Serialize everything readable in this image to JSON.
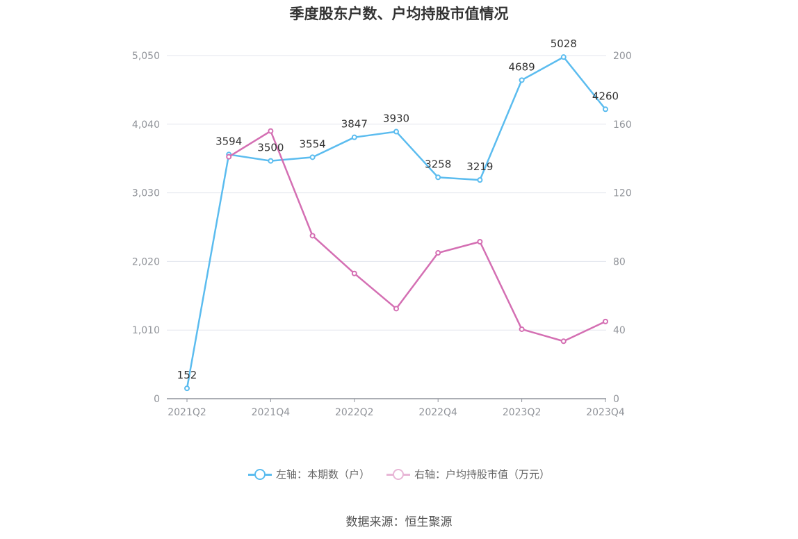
{
  "chart_data": {
    "type": "line",
    "title": "季度股东户数、户均持股市值情况",
    "categories": [
      "2021Q2",
      "2021Q3",
      "2021Q4",
      "2022Q1",
      "2022Q2",
      "2022Q3",
      "2022Q4",
      "2023Q1",
      "2023Q2",
      "2023Q3",
      "2023Q4"
    ],
    "x_tick_labels": [
      "2021Q2",
      "2021Q4",
      "2022Q2",
      "2022Q4",
      "2023Q2",
      "2023Q4"
    ],
    "left_axis": {
      "ylim": [
        0,
        5050
      ],
      "ticks": [
        "0",
        "1,010",
        "2,020",
        "3,030",
        "4,040",
        "5,050"
      ]
    },
    "right_axis": {
      "ylim": [
        0,
        200
      ],
      "ticks": [
        "0",
        "40",
        "80",
        "120",
        "160",
        "200"
      ]
    },
    "series": [
      {
        "name": "左轴：本期数（户）",
        "axis": "left",
        "color": "#5bbcef",
        "values": [
          152,
          3594,
          3500,
          3554,
          3847,
          3930,
          3258,
          3219,
          4689,
          5028,
          4260
        ],
        "labels": [
          "152",
          "3594",
          "3500",
          "3554",
          "3847",
          "3930",
          "3258",
          "3219",
          "4689",
          "5028",
          "4260"
        ]
      },
      {
        "name": "右轴：户均持股市值（万元）",
        "axis": "right",
        "color": "#d46fb3",
        "values": [
          null,
          141,
          156,
          95,
          73,
          52.5,
          85,
          91.5,
          40.5,
          33.5,
          45
        ]
      }
    ],
    "grid": true,
    "legend_position": "bottom-center"
  },
  "legend": {
    "left_label": "左轴：本期数（户）",
    "right_label": "右轴：户均持股市值（万元）"
  },
  "source": "数据来源：恒生聚源"
}
